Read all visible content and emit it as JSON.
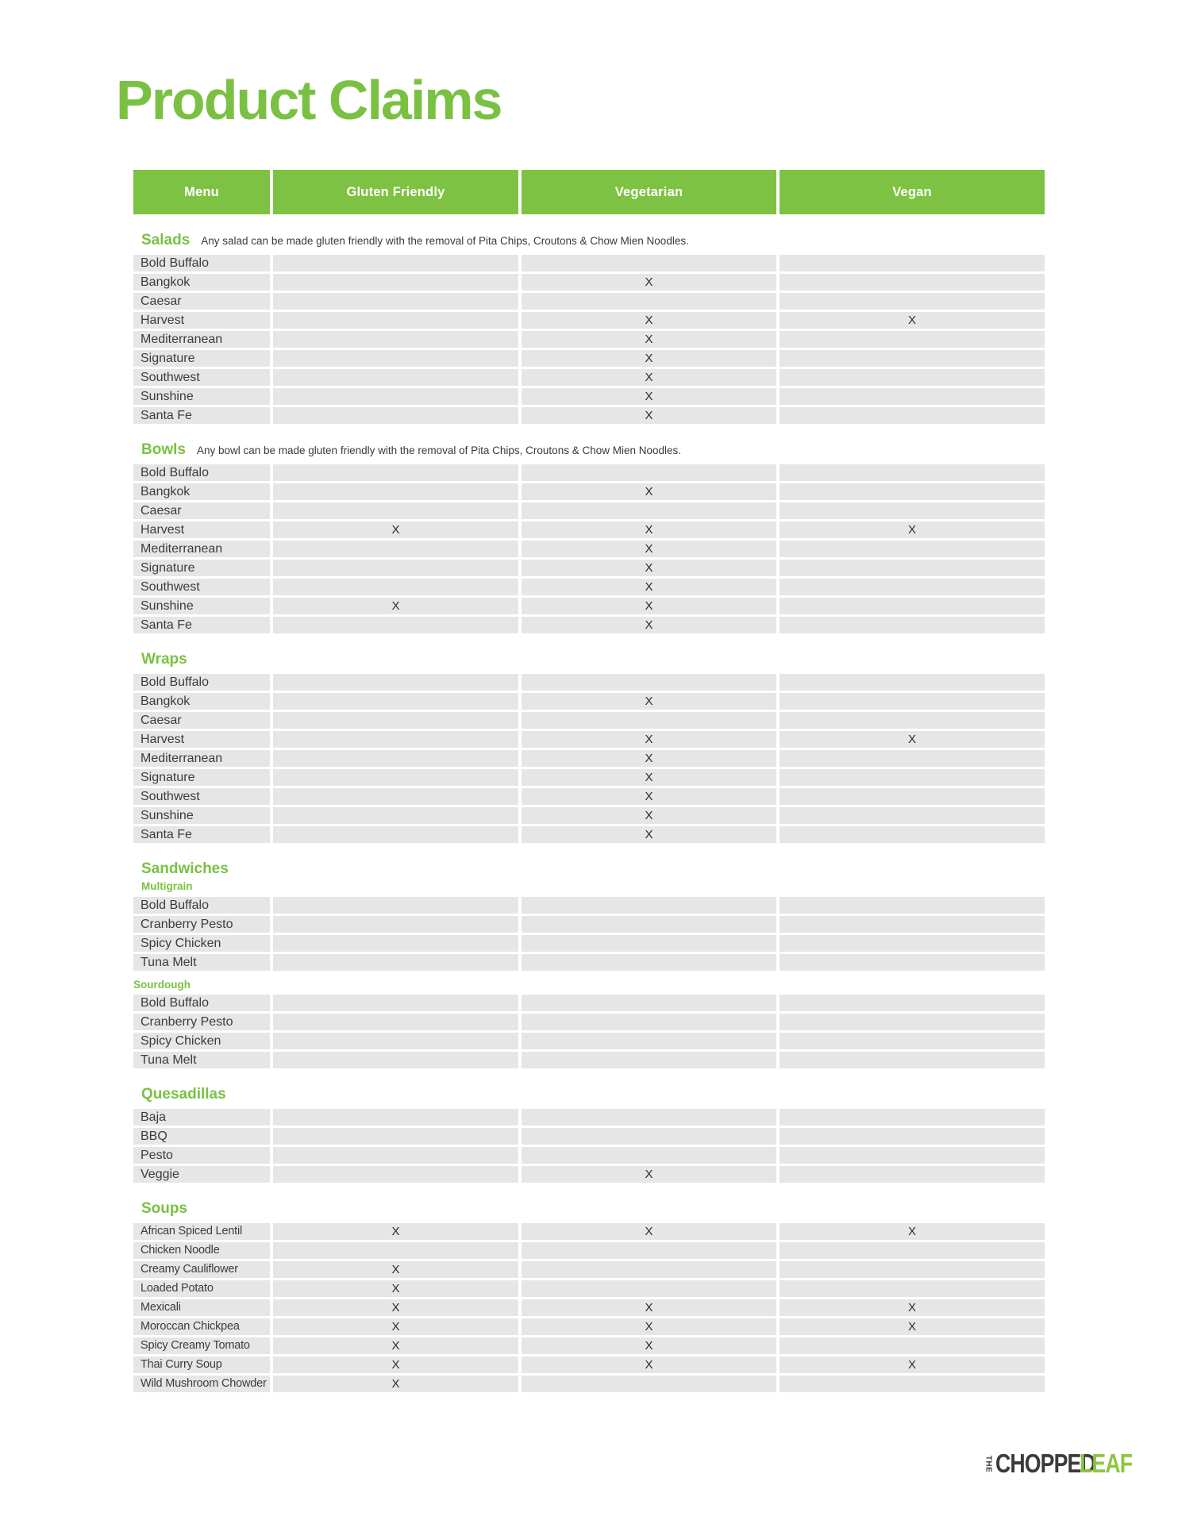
{
  "page": {
    "title": "Product Claims"
  },
  "table": {
    "columns": [
      "Menu",
      "Gluten Friendly",
      "Vegetarian",
      "Vegan"
    ],
    "mark_symbol": "X"
  },
  "colors": {
    "brand_green": "#7AC143",
    "header_green": "#7DC242",
    "row_gray": "#E6E6E6",
    "logo_dark": "#3B3B3C",
    "logo_green": "#8CC63F"
  },
  "sections": [
    {
      "title": "Salads",
      "note": "Any salad can be made gluten friendly with the removal of Pita Chips, Croutons & Chow Mien Noodles.",
      "compact": false,
      "groups": [
        {
          "label": "",
          "rows": [
            {
              "menu": "Bold Buffalo",
              "marks": [
                false,
                false,
                false
              ]
            },
            {
              "menu": "Bangkok",
              "marks": [
                false,
                true,
                false
              ]
            },
            {
              "menu": "Caesar",
              "marks": [
                false,
                false,
                false
              ]
            },
            {
              "menu": "Harvest",
              "marks": [
                false,
                true,
                true
              ]
            },
            {
              "menu": "Mediterranean",
              "marks": [
                false,
                true,
                false
              ]
            },
            {
              "menu": "Signature",
              "marks": [
                false,
                true,
                false
              ]
            },
            {
              "menu": "Southwest",
              "marks": [
                false,
                true,
                false
              ]
            },
            {
              "menu": "Sunshine",
              "marks": [
                false,
                true,
                false
              ]
            },
            {
              "menu": "Santa Fe",
              "marks": [
                false,
                true,
                false
              ]
            }
          ]
        }
      ]
    },
    {
      "title": "Bowls",
      "note": "Any bowl can be made gluten friendly with the removal of Pita Chips, Croutons & Chow Mien Noodles.",
      "compact": false,
      "groups": [
        {
          "label": "",
          "rows": [
            {
              "menu": "Bold Buffalo",
              "marks": [
                false,
                false,
                false
              ]
            },
            {
              "menu": "Bangkok",
              "marks": [
                false,
                true,
                false
              ]
            },
            {
              "menu": "Caesar",
              "marks": [
                false,
                false,
                false
              ]
            },
            {
              "menu": "Harvest",
              "marks": [
                true,
                true,
                true
              ]
            },
            {
              "menu": "Mediterranean",
              "marks": [
                false,
                true,
                false
              ]
            },
            {
              "menu": "Signature",
              "marks": [
                false,
                true,
                false
              ]
            },
            {
              "menu": "Southwest",
              "marks": [
                false,
                true,
                false
              ]
            },
            {
              "menu": "Sunshine",
              "marks": [
                true,
                true,
                false
              ]
            },
            {
              "menu": "Santa Fe",
              "marks": [
                false,
                true,
                false
              ]
            }
          ]
        }
      ]
    },
    {
      "title": "Wraps",
      "note": "",
      "compact": false,
      "groups": [
        {
          "label": "",
          "rows": [
            {
              "menu": "Bold Buffalo",
              "marks": [
                false,
                false,
                false
              ]
            },
            {
              "menu": "Bangkok",
              "marks": [
                false,
                true,
                false
              ]
            },
            {
              "menu": "Caesar",
              "marks": [
                false,
                false,
                false
              ]
            },
            {
              "menu": "Harvest",
              "marks": [
                false,
                true,
                true
              ]
            },
            {
              "menu": "Mediterranean",
              "marks": [
                false,
                true,
                false
              ]
            },
            {
              "menu": "Signature",
              "marks": [
                false,
                true,
                false
              ]
            },
            {
              "menu": "Southwest",
              "marks": [
                false,
                true,
                false
              ]
            },
            {
              "menu": "Sunshine",
              "marks": [
                false,
                true,
                false
              ]
            },
            {
              "menu": "Santa Fe",
              "marks": [
                false,
                true,
                false
              ]
            }
          ]
        }
      ]
    },
    {
      "title": "Sandwiches",
      "note": "",
      "compact": false,
      "groups": [
        {
          "label": "Multigrain",
          "rows": [
            {
              "menu": "Bold Buffalo",
              "marks": [
                false,
                false,
                false
              ]
            },
            {
              "menu": "Cranberry Pesto",
              "marks": [
                false,
                false,
                false
              ]
            },
            {
              "menu": "Spicy Chicken",
              "marks": [
                false,
                false,
                false
              ]
            },
            {
              "menu": "Tuna Melt",
              "marks": [
                false,
                false,
                false
              ]
            }
          ]
        },
        {
          "label": "Sourdough",
          "rows": [
            {
              "menu": "Bold Buffalo",
              "marks": [
                false,
                false,
                false
              ]
            },
            {
              "menu": "Cranberry Pesto",
              "marks": [
                false,
                false,
                false
              ]
            },
            {
              "menu": "Spicy Chicken",
              "marks": [
                false,
                false,
                false
              ]
            },
            {
              "menu": "Tuna Melt",
              "marks": [
                false,
                false,
                false
              ]
            }
          ]
        }
      ]
    },
    {
      "title": "Quesadillas",
      "note": "",
      "compact": false,
      "groups": [
        {
          "label": "",
          "rows": [
            {
              "menu": "Baja",
              "marks": [
                false,
                false,
                false
              ]
            },
            {
              "menu": "BBQ",
              "marks": [
                false,
                false,
                false
              ]
            },
            {
              "menu": "Pesto",
              "marks": [
                false,
                false,
                false
              ]
            },
            {
              "menu": "Veggie",
              "marks": [
                false,
                true,
                false
              ]
            }
          ]
        }
      ]
    },
    {
      "title": "Soups",
      "note": "",
      "compact": true,
      "groups": [
        {
          "label": "",
          "rows": [
            {
              "menu": "African Spiced Lentil",
              "marks": [
                true,
                true,
                true
              ]
            },
            {
              "menu": "Chicken Noodle",
              "marks": [
                false,
                false,
                false
              ]
            },
            {
              "menu": "Creamy Cauliflower",
              "marks": [
                true,
                false,
                false
              ]
            },
            {
              "menu": "Loaded Potato",
              "marks": [
                true,
                false,
                false
              ]
            },
            {
              "menu": "Mexicali",
              "marks": [
                true,
                true,
                true
              ]
            },
            {
              "menu": "Moroccan Chickpea",
              "marks": [
                true,
                true,
                true
              ]
            },
            {
              "menu": "Spicy Creamy Tomato",
              "marks": [
                true,
                true,
                false
              ]
            },
            {
              "menu": "Thai Curry Soup",
              "marks": [
                true,
                true,
                true
              ]
            },
            {
              "menu": "Wild Mushroom Chowder",
              "marks": [
                true,
                false,
                false
              ]
            }
          ]
        }
      ]
    }
  ],
  "logo": {
    "the": "THE",
    "chopped": "CHOPPED",
    "leaf": "LEAF"
  }
}
